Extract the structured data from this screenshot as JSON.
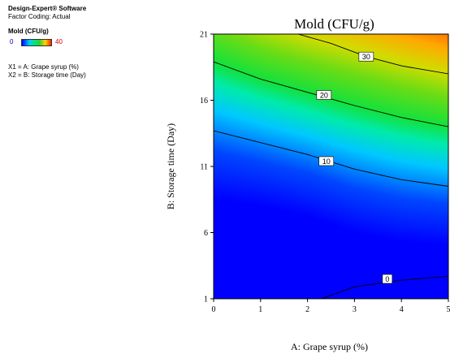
{
  "info": {
    "software": "Design-Expert® Software",
    "coding": "Factor Coding: Actual",
    "response_label": "Mold (CFU/g)",
    "legend_min": "0",
    "legend_max": "40",
    "factor1": "X1 = A: Grape syrup (%)",
    "factor2": "X2 = B: Storage time (Day)"
  },
  "colors": {
    "legend_min": "#0000cc",
    "legend_max": "#cc0000"
  },
  "chart_data": {
    "type": "contour",
    "title": "Mold (CFU/g)",
    "xlabel": "A: Grape syrup (%)",
    "ylabel": "B: Storage time (Day)",
    "xlim": [
      0,
      5
    ],
    "ylim": [
      1,
      21
    ],
    "x_ticks": [
      "0",
      "1",
      "2",
      "3",
      "4",
      "5"
    ],
    "y_ticks": [
      "1",
      "6",
      "11",
      "16",
      "21"
    ],
    "color_range": [
      0,
      40
    ],
    "contours": [
      {
        "level": "0",
        "label_at": [
          3.7,
          2.5
        ],
        "points": [
          [
            2.3,
            1.0
          ],
          [
            3.0,
            1.9
          ],
          [
            4.0,
            2.4
          ],
          [
            5.0,
            2.7
          ]
        ]
      },
      {
        "level": "10",
        "label_at": [
          2.4,
          11.4
        ],
        "points": [
          [
            0,
            13.7
          ],
          [
            1,
            12.8
          ],
          [
            2,
            11.9
          ],
          [
            3,
            10.8
          ],
          [
            4,
            10.0
          ],
          [
            5,
            9.5
          ]
        ]
      },
      {
        "level": "20",
        "label_at": [
          2.35,
          16.4
        ],
        "points": [
          [
            0,
            18.9
          ],
          [
            1,
            17.6
          ],
          [
            2,
            16.6
          ],
          [
            3,
            15.6
          ],
          [
            4,
            14.7
          ],
          [
            5,
            14.0
          ]
        ]
      },
      {
        "level": "30",
        "label_at": [
          3.25,
          19.3
        ],
        "points": [
          [
            1.8,
            21.0
          ],
          [
            2.5,
            20.3
          ],
          [
            3.25,
            19.3
          ],
          [
            4.0,
            18.6
          ],
          [
            5.0,
            18.0
          ]
        ]
      }
    ]
  }
}
